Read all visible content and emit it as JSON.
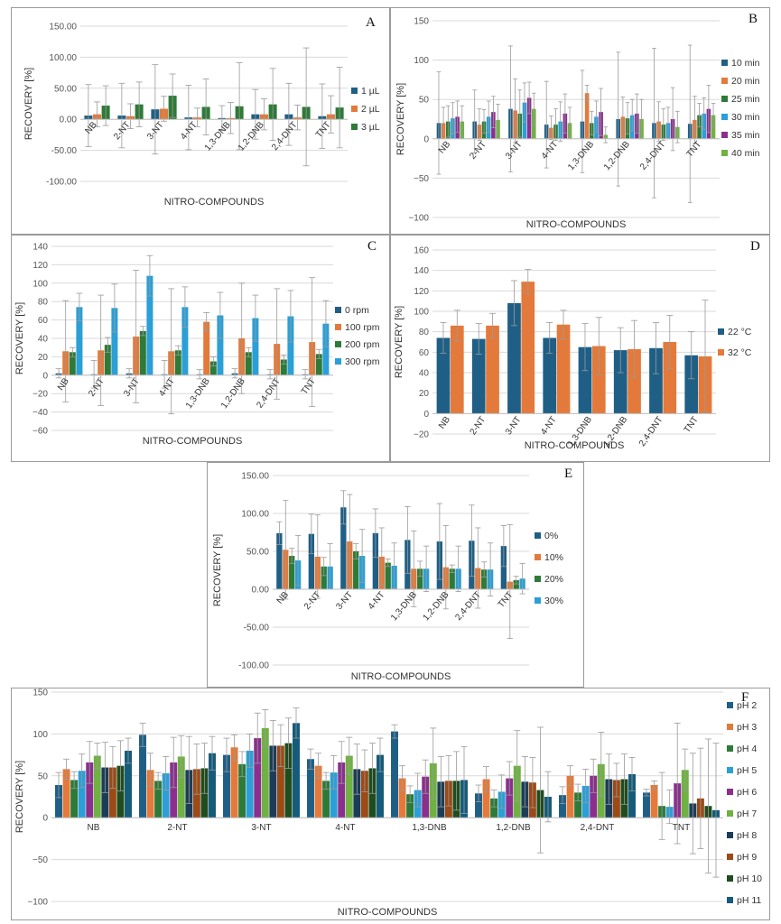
{
  "chart_data": [
    {
      "id": "A",
      "panel_label": "A",
      "type": "bar",
      "xlabel": "NITRO-COMPOUNDS",
      "ylabel": "RECOVERY [%]",
      "ylim": [
        -100,
        150
      ],
      "yticks": [
        -100,
        -50,
        0,
        50,
        100,
        150
      ],
      "ytick_labels": [
        "-100.00",
        "-50.00",
        "0.00",
        "50.00",
        "100.00",
        "150.00"
      ],
      "legend_position": "right",
      "categories": [
        "NB",
        "2-NT",
        "3-NT",
        "4-NT",
        "1,3-DNB",
        "1,2-DNB",
        "2,4-DNT",
        "TNT"
      ],
      "series": [
        {
          "name": "1 µL",
          "color": "#1f5f86",
          "values": [
            6,
            6,
            16,
            3,
            2,
            8,
            8,
            5
          ],
          "errors": [
            50,
            52,
            72,
            52,
            20,
            40,
            50,
            52
          ]
        },
        {
          "name": "2 µL",
          "color": "#e37a3b",
          "values": [
            8,
            5,
            17,
            3,
            2,
            8,
            3,
            8
          ],
          "errors": [
            20,
            20,
            20,
            15,
            25,
            25,
            20,
            30
          ]
        },
        {
          "name": "3 µL",
          "color": "#2e7a38",
          "values": [
            22,
            24,
            38,
            20,
            21,
            24,
            20,
            19
          ],
          "errors": [
            32,
            36,
            35,
            45,
            70,
            58,
            95,
            65
          ]
        }
      ]
    },
    {
      "id": "B",
      "panel_label": "B",
      "type": "bar",
      "xlabel": "NITRO-COMPOUNDS",
      "ylabel": "RECOVERY [%]",
      "ylim": [
        -100,
        150
      ],
      "yticks": [
        -100,
        -50,
        0,
        50,
        100,
        150
      ],
      "ytick_labels": [
        "−100",
        "−50",
        "0",
        "50",
        "100",
        "150"
      ],
      "legend_position": "right",
      "categories": [
        "NB",
        "2-NT",
        "3-NT",
        "4-NT",
        "1,3-DNB",
        "1,2-DNB",
        "2,4-DNT",
        "TNT"
      ],
      "series": [
        {
          "name": "10 min",
          "color": "#1f5f86",
          "values": [
            20,
            22,
            38,
            18,
            22,
            25,
            20,
            19
          ],
          "errors": [
            65,
            40,
            80,
            55,
            65,
            85,
            95,
            100
          ]
        },
        {
          "name": "20 min",
          "color": "#e37a3b",
          "values": [
            20,
            18,
            36,
            14,
            58,
            28,
            22,
            24
          ],
          "errors": [
            20,
            20,
            40,
            15,
            10,
            25,
            25,
            30
          ]
        },
        {
          "name": "25 min",
          "color": "#2e7a38",
          "values": [
            22,
            22,
            32,
            18,
            20,
            26,
            18,
            30
          ],
          "errors": [
            20,
            15,
            30,
            20,
            15,
            20,
            20,
            15
          ]
        },
        {
          "name": "30 min",
          "color": "#2b9fd6",
          "values": [
            26,
            28,
            46,
            22,
            28,
            30,
            20,
            32
          ],
          "errors": [
            20,
            20,
            25,
            25,
            20,
            20,
            20,
            20
          ]
        },
        {
          "name": "35 min",
          "color": "#8b2f8f",
          "values": [
            28,
            34,
            52,
            32,
            34,
            32,
            25,
            38
          ],
          "errors": [
            20,
            20,
            20,
            25,
            30,
            25,
            40,
            30
          ]
        },
        {
          "name": "40 min",
          "color": "#6fb242",
          "values": [
            22,
            24,
            38,
            20,
            5,
            25,
            15,
            30
          ],
          "errors": [
            20,
            20,
            20,
            20,
            10,
            25,
            20,
            15
          ]
        }
      ]
    },
    {
      "id": "C",
      "panel_label": "C",
      "type": "bar",
      "xlabel": "NITRO-COMPOUNDS",
      "ylabel": "RECOVERY [%]",
      "ylim": [
        -60,
        140
      ],
      "yticks": [
        -60,
        -40,
        -20,
        0,
        20,
        40,
        60,
        80,
        100,
        120,
        140
      ],
      "ytick_labels": [
        "−60",
        "−40",
        "−20",
        "0",
        "20",
        "40",
        "60",
        "80",
        "100",
        "120",
        "140"
      ],
      "legend_position": "right",
      "categories": [
        "NB",
        "2-NT",
        "3-NT",
        "4-NT",
        "1,3-DNB",
        "1,2-DNB",
        "2,4-DNT",
        "TNT"
      ],
      "series": [
        {
          "name": "0 rpm",
          "color": "#1f5f86",
          "values": [
            2,
            1,
            2,
            1,
            1,
            2,
            1,
            1
          ],
          "errors": [
            5,
            15,
            5,
            15,
            5,
            5,
            5,
            5
          ]
        },
        {
          "name": "100 rpm",
          "color": "#e37a3b",
          "values": [
            26,
            27,
            42,
            26,
            58,
            40,
            34,
            36
          ],
          "errors": [
            55,
            60,
            72,
            68,
            10,
            60,
            60,
            70
          ]
        },
        {
          "name": "200 rpm",
          "color": "#2e7a38",
          "values": [
            25,
            33,
            48,
            27,
            15,
            25,
            17,
            23
          ],
          "errors": [
            5,
            8,
            5,
            5,
            5,
            5,
            5,
            5
          ]
        },
        {
          "name": "300 rpm",
          "color": "#2b9fd6",
          "values": [
            74,
            73,
            108,
            74,
            65,
            62,
            64,
            56
          ],
          "errors": [
            15,
            26,
            22,
            22,
            25,
            25,
            28,
            25
          ]
        }
      ]
    },
    {
      "id": "D",
      "panel_label": "D",
      "type": "bar",
      "xlabel": "NITRO-COMPOUNDS",
      "ylabel": "RECOVERY [%]",
      "ylim": [
        -20,
        160
      ],
      "yticks": [
        -20,
        0,
        20,
        40,
        60,
        80,
        100,
        120,
        140,
        160
      ],
      "ytick_labels": [
        "−20",
        "0",
        "20",
        "40",
        "60",
        "80",
        "100",
        "120",
        "140",
        "160"
      ],
      "legend_position": "right",
      "categories": [
        "NB",
        "2-NT",
        "3-NT",
        "4-NT",
        "1,3-DNB",
        "1,2-DNB",
        "2,4-DNT",
        "TNT"
      ],
      "series": [
        {
          "name": "22 °C",
          "color": "#1f5f86",
          "values": [
            74,
            73,
            108,
            74,
            65,
            62,
            64,
            57
          ],
          "errors": [
            15,
            15,
            22,
            15,
            23,
            22,
            25,
            23
          ]
        },
        {
          "name": "32 °C",
          "color": "#e37a3b",
          "values": [
            86,
            86,
            129,
            87,
            66,
            63,
            70,
            56
          ],
          "errors": [
            15,
            12,
            12,
            14,
            28,
            28,
            26,
            55
          ]
        }
      ]
    },
    {
      "id": "E",
      "panel_label": "E",
      "type": "bar",
      "xlabel": "NITRO-COMPOUNDS",
      "ylabel": "RECOVERY [%]",
      "ylim": [
        -100,
        150
      ],
      "yticks": [
        -100,
        -50,
        0,
        50,
        100,
        150
      ],
      "ytick_labels": [
        "-100.00",
        "-50.00",
        "0.00",
        "50.00",
        "100.00",
        "150.00"
      ],
      "legend_position": "right",
      "categories": [
        "NB",
        "2-NT",
        "3-NT",
        "4-NT",
        "1,3-DNB",
        "1,2-DNB",
        "2,4-DNT",
        "TNT"
      ],
      "series": [
        {
          "name": "0%",
          "color": "#1f5f86",
          "values": [
            74,
            73,
            108,
            74,
            65,
            63,
            64,
            57
          ],
          "errors": [
            15,
            26,
            22,
            32,
            44,
            50,
            47,
            27
          ]
        },
        {
          "name": "10%",
          "color": "#e37a3b",
          "values": [
            52,
            43,
            63,
            43,
            27,
            29,
            28,
            10
          ],
          "errors": [
            65,
            55,
            62,
            38,
            50,
            55,
            53,
            75
          ]
        },
        {
          "name": "20%",
          "color": "#2e7a38",
          "values": [
            44,
            30,
            50,
            35,
            27,
            27,
            26,
            12
          ],
          "errors": [
            10,
            12,
            10,
            5,
            10,
            5,
            10,
            5
          ]
        },
        {
          "name": "30%",
          "color": "#2b9fd6",
          "values": [
            38,
            30,
            44,
            31,
            27,
            27,
            26,
            14
          ],
          "errors": [
            33,
            30,
            35,
            30,
            30,
            30,
            35,
            20
          ]
        }
      ]
    },
    {
      "id": "F",
      "panel_label": "F",
      "type": "bar",
      "xlabel": "NITRO-COMPOUNDS",
      "ylabel": "RECOVERY [%]",
      "ylim": [
        -100,
        150
      ],
      "yticks": [
        -100,
        -50,
        0,
        50,
        100,
        150
      ],
      "ytick_labels": [
        "−100",
        "−50",
        "0",
        "50",
        "100",
        "150"
      ],
      "legend_position": "right",
      "categories": [
        "NB",
        "2-NT",
        "3-NT",
        "4-NT",
        "1,3-DNB",
        "1,2-DNB",
        "2,4-DNT",
        "TNT"
      ],
      "series": [
        {
          "name": "pH 2",
          "color": "#1f5f86",
          "values": [
            39,
            99,
            75,
            70,
            103,
            29,
            27,
            30
          ],
          "errors": [
            15,
            14,
            20,
            12,
            8,
            10,
            10,
            4
          ]
        },
        {
          "name": "pH 3",
          "color": "#e37a3b",
          "values": [
            58,
            57,
            84,
            62,
            47,
            46,
            50,
            39
          ],
          "errors": [
            12,
            20,
            15,
            15,
            15,
            15,
            12,
            5
          ]
        },
        {
          "name": "pH 4",
          "color": "#2e7a38",
          "values": [
            45,
            44,
            64,
            44,
            28,
            23,
            30,
            14
          ],
          "errors": [
            10,
            10,
            15,
            10,
            10,
            10,
            10,
            40
          ]
        },
        {
          "name": "pH 5",
          "color": "#2b9fd6",
          "values": [
            56,
            53,
            80,
            54,
            33,
            31,
            38,
            13
          ],
          "errors": [
            20,
            20,
            20,
            20,
            20,
            20,
            20,
            20
          ]
        },
        {
          "name": "pH 6",
          "color": "#8b2f8f",
          "values": [
            66,
            66,
            95,
            66,
            49,
            47,
            50,
            41
          ],
          "errors": [
            25,
            30,
            30,
            25,
            20,
            20,
            20,
            72
          ]
        },
        {
          "name": "pH 7",
          "color": "#6fb242",
          "values": [
            74,
            73,
            107,
            74,
            65,
            62,
            64,
            57
          ],
          "errors": [
            15,
            25,
            22,
            22,
            42,
            42,
            38,
            25
          ]
        },
        {
          "name": "pH 8",
          "color": "#1c3d5a",
          "values": [
            60,
            57,
            86,
            58,
            43,
            43,
            46,
            17
          ],
          "errors": [
            30,
            40,
            30,
            30,
            30,
            30,
            30,
            60
          ]
        },
        {
          "name": "pH 9",
          "color": "#9c4a16",
          "values": [
            60,
            58,
            86,
            56,
            44,
            42,
            45,
            23
          ],
          "errors": [
            25,
            30,
            25,
            25,
            30,
            30,
            20,
            60
          ]
        },
        {
          "name": "pH 10",
          "color": "#1f4d1f",
          "values": [
            62,
            59,
            89,
            59,
            44,
            33,
            46,
            14
          ],
          "errors": [
            30,
            30,
            30,
            30,
            35,
            75,
            30,
            80
          ]
        },
        {
          "name": "pH 11",
          "color": "#155b7a",
          "values": [
            80,
            77,
            113,
            75,
            45,
            25,
            52,
            9
          ],
          "errors": [
            15,
            20,
            18,
            20,
            40,
            30,
            20,
            80
          ]
        }
      ]
    }
  ]
}
